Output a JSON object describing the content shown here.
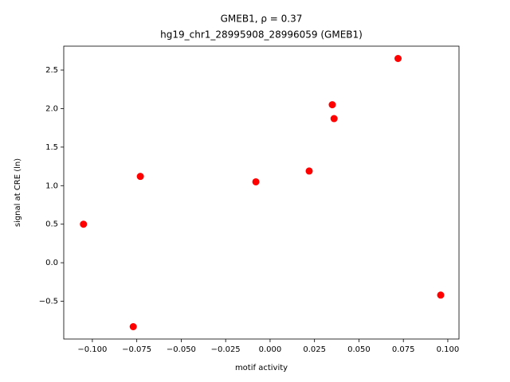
{
  "chart_data": {
    "type": "scatter",
    "title": "GMEB1, ρ = 0.37",
    "subtitle": "hg19_chr1_28995908_28996059 (GMEB1)",
    "xlabel": "motif activity",
    "ylabel": "signal at CRE (ln)",
    "color": "#ff0000",
    "x": [
      -0.105,
      -0.077,
      -0.073,
      -0.008,
      0.022,
      0.035,
      0.036,
      0.072,
      0.096
    ],
    "values": [
      0.5,
      -0.83,
      1.12,
      1.05,
      1.19,
      2.05,
      1.87,
      2.65,
      -0.42
    ],
    "xlim": [
      -0.1161,
      0.1063
    ],
    "ylim": [
      -0.99,
      2.81
    ],
    "xticks": [
      {
        "value": -0.1,
        "label": "−0.100"
      },
      {
        "value": -0.075,
        "label": "−0.075"
      },
      {
        "value": -0.05,
        "label": "−0.050"
      },
      {
        "value": -0.025,
        "label": "−0.025"
      },
      {
        "value": 0,
        "label": "0.000"
      },
      {
        "value": 0.025,
        "label": "0.025"
      },
      {
        "value": 0.05,
        "label": "0.050"
      },
      {
        "value": 0.075,
        "label": "0.075"
      },
      {
        "value": 0.1,
        "label": "0.100"
      }
    ],
    "yticks": [
      {
        "value": -0.5,
        "label": "−0.5"
      },
      {
        "value": 0,
        "label": "0.0"
      },
      0.5,
      {
        "value": 1,
        "label": "1.0"
      },
      1.5,
      {
        "value": 2,
        "label": "2.0"
      },
      2.5
    ]
  }
}
